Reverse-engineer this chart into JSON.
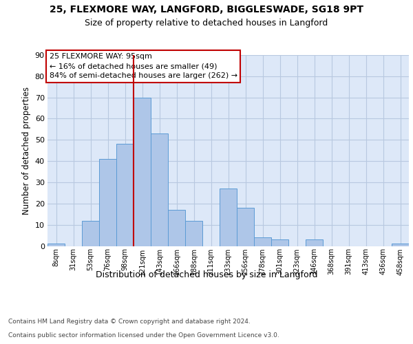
{
  "title1": "25, FLEXMORE WAY, LANGFORD, BIGGLESWADE, SG18 9PT",
  "title2": "Size of property relative to detached houses in Langford",
  "xlabel": "Distribution of detached houses by size in Langford",
  "ylabel": "Number of detached properties",
  "footnote1": "Contains HM Land Registry data © Crown copyright and database right 2024.",
  "footnote2": "Contains public sector information licensed under the Open Government Licence v3.0.",
  "bin_labels": [
    "8sqm",
    "31sqm",
    "53sqm",
    "76sqm",
    "98sqm",
    "121sqm",
    "143sqm",
    "166sqm",
    "188sqm",
    "211sqm",
    "233sqm",
    "256sqm",
    "278sqm",
    "301sqm",
    "323sqm",
    "346sqm",
    "368sqm",
    "391sqm",
    "413sqm",
    "436sqm",
    "458sqm"
  ],
  "bar_values": [
    1,
    0,
    12,
    41,
    48,
    70,
    53,
    17,
    12,
    0,
    27,
    18,
    4,
    3,
    0,
    3,
    0,
    0,
    0,
    0,
    1
  ],
  "bar_color": "#aec6e8",
  "bar_edge_color": "#5b9bd5",
  "vline_color": "#c00000",
  "annotation_line1": "25 FLEXMORE WAY: 95sqm",
  "annotation_line2": "← 16% of detached houses are smaller (49)",
  "annotation_line3": "84% of semi-detached houses are larger (262) →",
  "annotation_box_facecolor": "#ffffff",
  "annotation_box_edgecolor": "#c00000",
  "ylim": [
    0,
    90
  ],
  "yticks": [
    0,
    10,
    20,
    30,
    40,
    50,
    60,
    70,
    80,
    90
  ],
  "axes_bg_color": "#dde8f8",
  "fig_bg_color": "#ffffff",
  "grid_color": "#b8c8e0"
}
